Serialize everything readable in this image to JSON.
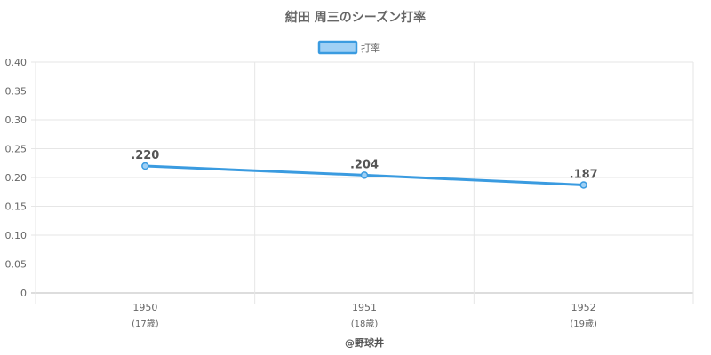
{
  "chart_data": {
    "type": "line",
    "title": "紺田 周三のシーズン打率",
    "legend": {
      "position": "top",
      "label": "打率"
    },
    "x": [
      "1950",
      "1951",
      "1952"
    ],
    "x_sublabels": [
      "(17歳)",
      "(18歳)",
      "(19歳)"
    ],
    "series": [
      {
        "name": "打率",
        "values": [
          0.22,
          0.204,
          0.187
        ],
        "labels": [
          ".220",
          ".204",
          ".187"
        ]
      }
    ],
    "ylim": [
      0,
      0.4
    ],
    "yticks": [
      "0",
      "0.05",
      "0.10",
      "0.15",
      "0.20",
      "0.25",
      "0.30",
      "0.35",
      "0.40"
    ],
    "grid": true,
    "line_color": "#3a9be0",
    "fill_color": "#9fd0f5"
  },
  "credit": "@野球丼"
}
